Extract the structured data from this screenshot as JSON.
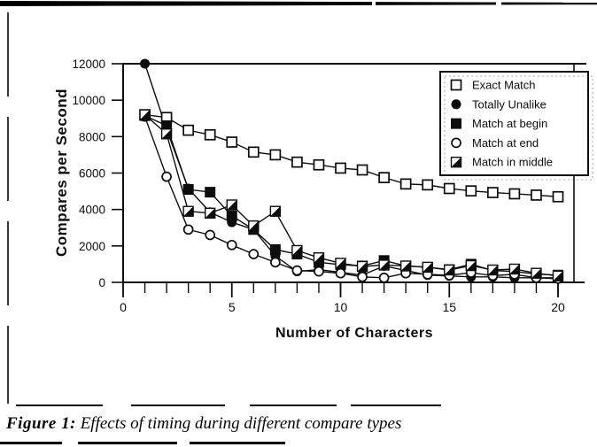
{
  "figure": {
    "caption_label": "Figure 1:",
    "caption_text": " Effects of timing during different compare types"
  },
  "chart_data": {
    "type": "line",
    "title": "",
    "xlabel": "Number of Characters",
    "ylabel": "Compares per Second",
    "xlim": [
      0,
      20
    ],
    "ylim": [
      0,
      12000
    ],
    "x_major_ticks": [
      0,
      5,
      10,
      15,
      20
    ],
    "x_minor_tick_step": 1,
    "y_ticks": [
      0,
      2000,
      4000,
      6000,
      8000,
      10000,
      12000
    ],
    "grid": false,
    "legend_position": "upper right",
    "ink_color": "#0d0d0d",
    "paper_color": "#ffffff",
    "x": [
      1,
      2,
      3,
      4,
      5,
      6,
      7,
      8,
      9,
      10,
      11,
      12,
      13,
      14,
      15,
      16,
      17,
      18,
      19,
      20
    ],
    "series": [
      {
        "name": "Exact Match",
        "marker": "open-square",
        "values": [
          9200,
          9050,
          8350,
          8100,
          7700,
          7150,
          7000,
          6600,
          6450,
          6270,
          6170,
          5750,
          5400,
          5350,
          5150,
          5020,
          4930,
          4860,
          4790,
          4700
        ]
      },
      {
        "name": "Totally Unalike",
        "marker": "filled-circle",
        "values": [
          12000,
          8400,
          5150,
          3850,
          3300,
          2900,
          1450,
          600,
          700,
          550,
          400,
          900,
          650,
          400,
          350,
          300,
          300,
          250,
          250,
          250
        ]
      },
      {
        "name": "Match at begin",
        "marker": "filled-square",
        "values": [
          9150,
          8600,
          5100,
          4950,
          3650,
          2900,
          1800,
          1550,
          1100,
          970,
          900,
          1200,
          900,
          830,
          700,
          1000,
          650,
          600,
          450,
          400
        ]
      },
      {
        "name": "Match at end",
        "marker": "open-circle",
        "values": [
          9100,
          5800,
          2900,
          2600,
          2050,
          1550,
          1100,
          650,
          600,
          500,
          300,
          250,
          500,
          440,
          390,
          530,
          370,
          440,
          250,
          200
        ]
      },
      {
        "name": "Match in middle",
        "marker": "half-filled-square",
        "values": [
          9200,
          8150,
          3900,
          3800,
          4250,
          3100,
          3900,
          1750,
          1350,
          1050,
          875,
          950,
          900,
          830,
          680,
          920,
          680,
          730,
          500,
          350
        ]
      }
    ]
  }
}
